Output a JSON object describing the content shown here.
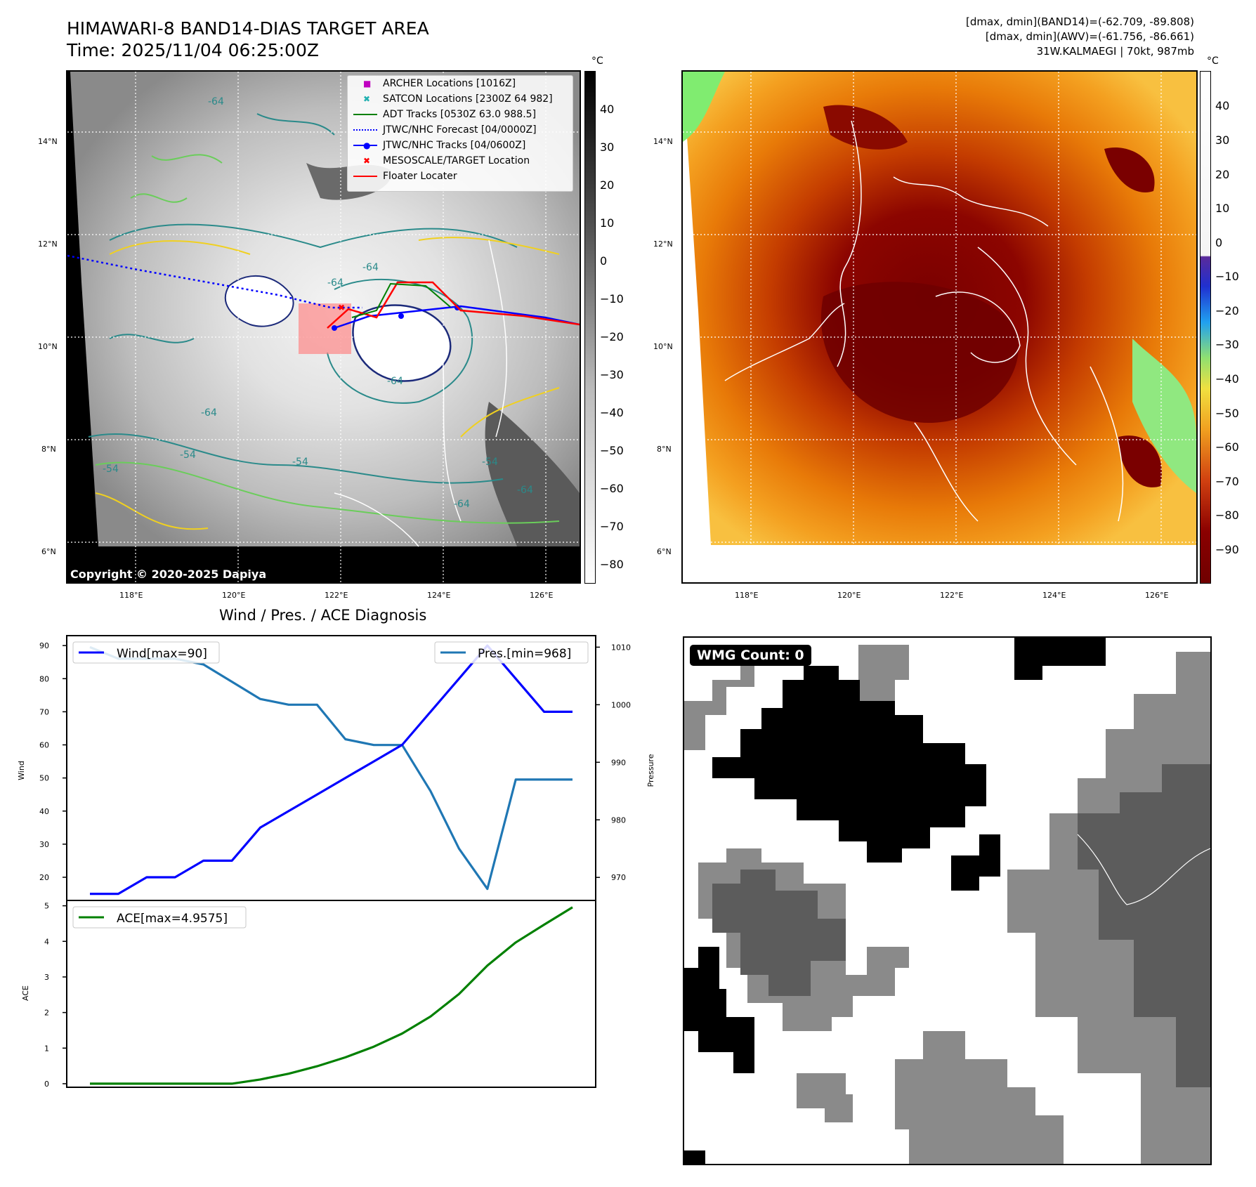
{
  "header": {
    "title": "HIMAWARI-8 BAND14-DIAS TARGET AREA",
    "time": "Time: 2025/11/04 06:25:00Z",
    "stats_line1": "[dmax, dmin](BAND14)=(-62.709, -89.808)",
    "stats_line2": "[dmax, dmin](AWV)=(-61.756, -86.661)",
    "storm_line": "31W.KALMAEGI | 70kt, 987mb"
  },
  "ir_map": {
    "lat_ticks": [
      "14°N",
      "12°N",
      "10°N",
      "8°N",
      "6°N"
    ],
    "lon_ticks": [
      "118°E",
      "120°E",
      "122°E",
      "124°E",
      "126°E"
    ],
    "colorbar_unit": "°C",
    "colorbar_ticks": [
      "40",
      "30",
      "20",
      "10",
      "0",
      "−10",
      "−20",
      "−30",
      "−40",
      "−50",
      "−60",
      "−70",
      "−80"
    ],
    "copyright": "Copyright © 2020-2025 Dapiya",
    "contour_labels": [
      "-64",
      "-64",
      "-64",
      "-64",
      "-54",
      "-54",
      "-54",
      "-64",
      "-64",
      "-54",
      "-64"
    ],
    "legend": [
      {
        "label": "ARCHER Locations [1016Z]",
        "color": "#c000c0",
        "marker": "■"
      },
      {
        "label": "SATCON Locations [2300Z 64 982]",
        "color": "#20b0b0",
        "marker": "✖"
      },
      {
        "label": "ADT Tracks [0530Z 63.0 988.5]",
        "color": "#008000",
        "marker": ""
      },
      {
        "label": "JTWC/NHC Forecast [04/0000Z]",
        "color": "#0000ff",
        "marker": "dotted"
      },
      {
        "label": "JTWC/NHC Tracks [04/0600Z]",
        "color": "#0000ff",
        "marker": "●"
      },
      {
        "label": "MESOSCALE/TARGET Location",
        "color": "#ff0000",
        "marker": "✖"
      },
      {
        "label": "Floater Locater",
        "color": "#ff0000",
        "marker": ""
      }
    ]
  },
  "wv_map": {
    "lat_ticks": [
      "14°N",
      "12°N",
      "10°N",
      "8°N",
      "6°N"
    ],
    "lon_ticks": [
      "118°E",
      "120°E",
      "122°E",
      "124°E",
      "126°E"
    ],
    "colorbar_unit": "°C",
    "colorbar_ticks": [
      "40",
      "30",
      "20",
      "10",
      "0",
      "−10",
      "−20",
      "−30",
      "−40",
      "−50",
      "−60",
      "−70",
      "−80",
      "−90"
    ]
  },
  "wmg": {
    "label": "WMG Count: 0"
  },
  "chart_data": [
    {
      "type": "line",
      "title": "Wind / Pres. / ACE Diagnosis",
      "xlabel": "",
      "ylabel": "Wind",
      "y2label": "Pressure",
      "ylim": [
        13,
        93
      ],
      "y2lim": [
        966,
        1012
      ],
      "yticks": [
        "90",
        "80",
        "70",
        "60",
        "50",
        "40",
        "30",
        "20"
      ],
      "y2ticks": [
        "1010",
        "1000",
        "990",
        "980",
        "970"
      ],
      "x": [
        0,
        1,
        2,
        3,
        4,
        5,
        6,
        7,
        8,
        9,
        10,
        11,
        12,
        13,
        14,
        15,
        16,
        17
      ],
      "series": [
        {
          "name": "Wind[max=90]",
          "axis": "left",
          "color": "#0000ff",
          "values": [
            15,
            15,
            20,
            20,
            25,
            25,
            35,
            40,
            45,
            50,
            55,
            60,
            70,
            80,
            90,
            80,
            70,
            70
          ]
        },
        {
          "name": "Pres.[min=968]",
          "axis": "right",
          "color": "#1f77b4",
          "values": [
            1010,
            1008,
            1008,
            1008,
            1007,
            1004,
            1001,
            1000,
            1000,
            994,
            993,
            993,
            985,
            975,
            968,
            987,
            987,
            987
          ]
        }
      ],
      "legend_placement": [
        "upper-left",
        "upper-right"
      ]
    },
    {
      "type": "line",
      "title": "",
      "xlabel": "",
      "ylabel": "ACE",
      "ylim": [
        -0.1,
        5.15
      ],
      "yticks": [
        "5",
        "4",
        "3",
        "2",
        "1",
        "0"
      ],
      "x": [
        0,
        1,
        2,
        3,
        4,
        5,
        6,
        7,
        8,
        9,
        10,
        11,
        12,
        13,
        14,
        15,
        16,
        17
      ],
      "series": [
        {
          "name": "ACE[max=4.9575]",
          "color": "#008000",
          "values": [
            0,
            0,
            0,
            0,
            0,
            0,
            0.12,
            0.28,
            0.49,
            0.74,
            1.04,
            1.41,
            1.89,
            2.52,
            3.32,
            3.97,
            4.47,
            4.9575
          ]
        }
      ],
      "legend_placement": "upper-left"
    }
  ]
}
